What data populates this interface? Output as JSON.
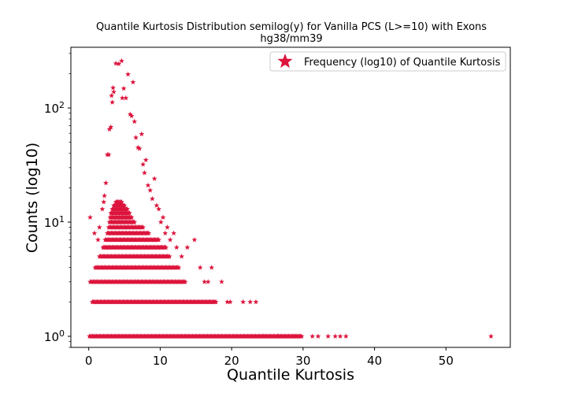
{
  "chart_data": {
    "type": "scatter",
    "title": "Quantile Kurtosis Distribution semilog(y) for Vanilla PCS (L>=10) with Exons",
    "subtitle": "hg38/mm39",
    "xlabel": "Quantile Kurtosis",
    "ylabel": "Counts (log10)",
    "xlim": [
      -2.5,
      59
    ],
    "ylim": [
      0.8,
      340
    ],
    "yscale": "log",
    "grid": false,
    "legend_position": "top-right",
    "x_ticks": [
      0,
      10,
      20,
      30,
      40,
      50
    ],
    "x_tick_labels": [
      "0",
      "10",
      "20",
      "30",
      "40",
      "50"
    ],
    "y_ticks": [
      1,
      10,
      100
    ],
    "y_tick_labels": [
      "10^0",
      "10^1",
      "10^2"
    ],
    "marker": "star",
    "color": "#dc143c",
    "series": [
      {
        "name": "Frequency (log10) of Quantile Kurtosis",
        "points": [
          [
            0.2,
            11
          ],
          [
            0.8,
            8
          ],
          [
            1.3,
            7
          ],
          [
            1.5,
            9
          ],
          [
            1.9,
            13
          ],
          [
            2.2,
            17
          ],
          [
            2.4,
            22
          ],
          [
            2.1,
            15
          ],
          [
            2.6,
            39
          ],
          [
            2.8,
            39
          ],
          [
            2.9,
            65
          ],
          [
            3.1,
            68
          ],
          [
            3.3,
            112
          ],
          [
            3.2,
            128
          ],
          [
            3.4,
            150
          ],
          [
            3.5,
            138
          ],
          [
            3.8,
            245
          ],
          [
            4.2,
            243
          ],
          [
            4.6,
            258
          ],
          [
            4.9,
            148
          ],
          [
            4.7,
            122
          ],
          [
            5.2,
            122
          ],
          [
            5.5,
            197
          ],
          [
            5.8,
            88
          ],
          [
            6.0,
            85
          ],
          [
            6.2,
            168
          ],
          [
            6.4,
            76
          ],
          [
            6.6,
            55
          ],
          [
            6.9,
            45
          ],
          [
            7.1,
            44
          ],
          [
            7.4,
            59
          ],
          [
            7.6,
            32
          ],
          [
            7.8,
            27
          ],
          [
            8.0,
            35
          ],
          [
            8.3,
            21
          ],
          [
            8.6,
            19
          ],
          [
            8.9,
            16
          ],
          [
            9.2,
            24
          ],
          [
            9.5,
            14
          ],
          [
            9.8,
            13
          ],
          [
            10.1,
            10
          ],
          [
            10.4,
            11
          ],
          [
            10.7,
            8
          ],
          [
            11.0,
            9
          ],
          [
            11.4,
            7
          ],
          [
            11.9,
            8
          ],
          [
            12.3,
            6
          ],
          [
            13.0,
            5
          ],
          [
            13.8,
            6
          ],
          [
            14.8,
            7
          ],
          [
            15.6,
            4
          ],
          [
            16.2,
            3
          ],
          [
            16.7,
            3
          ],
          [
            17.2,
            4
          ],
          [
            18.6,
            3
          ],
          [
            19.4,
            2
          ],
          [
            19.8,
            2
          ],
          [
            21.6,
            2
          ],
          [
            22.6,
            2
          ],
          [
            23.4,
            2
          ],
          [
            24.5,
            1
          ],
          [
            26.5,
            1
          ],
          [
            28.8,
            1
          ],
          [
            31.3,
            1
          ],
          [
            32.1,
            1
          ],
          [
            33.5,
            1
          ],
          [
            34.5,
            1
          ],
          [
            35.2,
            1
          ],
          [
            36.0,
            1
          ],
          [
            56.3,
            1
          ]
        ],
        "dense_bands": [
          {
            "y": 1,
            "x_range": [
              0.1,
              29.8
            ]
          },
          {
            "y": 2,
            "x_range": [
              0.5,
              17.8
            ]
          },
          {
            "y": 3,
            "x_range": [
              0.2,
              13.5
            ]
          },
          {
            "y": 4,
            "x_range": [
              0.9,
              12.6
            ]
          },
          {
            "y": 5,
            "x_range": [
              1.5,
              11.3
            ]
          },
          {
            "y": 6,
            "x_range": [
              2.0,
              10.8
            ]
          },
          {
            "y": 7,
            "x_range": [
              2.3,
              9.8
            ]
          },
          {
            "y": 8,
            "x_range": [
              2.6,
              8.4
            ]
          },
          {
            "y": 9,
            "x_range": [
              2.8,
              7.6
            ]
          },
          {
            "y": 10,
            "x_range": [
              2.9,
              6.4
            ]
          },
          {
            "y": 11,
            "x_range": [
              3.0,
              6.0
            ]
          },
          {
            "y": 12,
            "x_range": [
              3.1,
              5.7
            ]
          },
          {
            "y": 13,
            "x_range": [
              3.3,
              5.4
            ]
          },
          {
            "y": 14,
            "x_range": [
              3.5,
              5.0
            ]
          },
          {
            "y": 15,
            "x_range": [
              3.8,
              4.6
            ]
          }
        ]
      }
    ]
  }
}
